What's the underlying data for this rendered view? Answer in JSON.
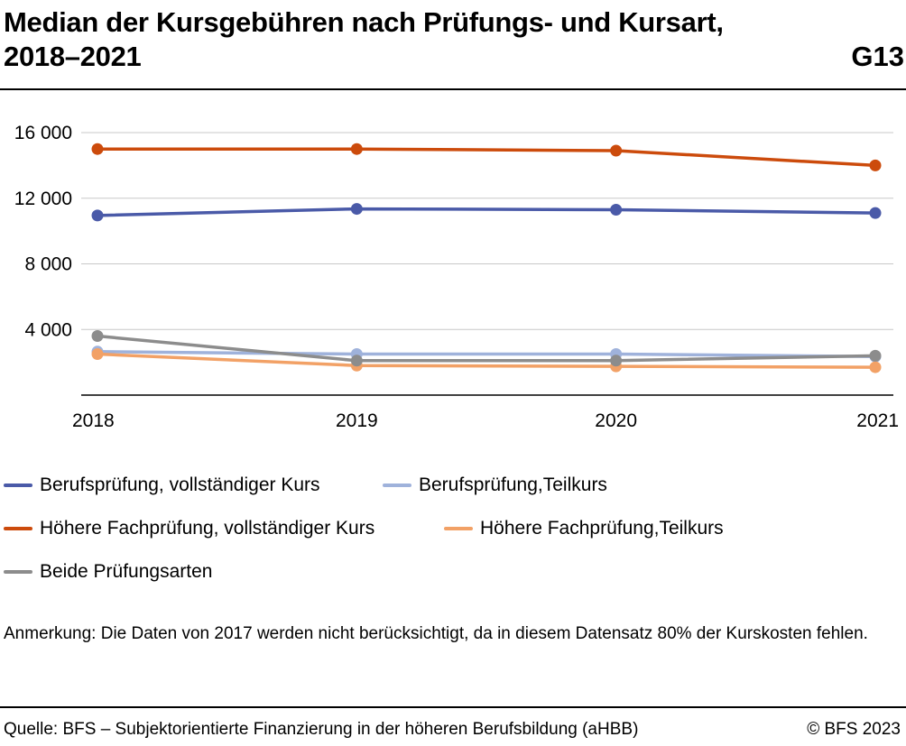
{
  "header": {
    "title": "Median der Kursgebühren nach Prüfungs- und Kursart, 2018–2021",
    "code": "G13"
  },
  "chart_data": {
    "type": "line",
    "title": "Median der Kursgebühren nach Prüfungs- und Kursart, 2018–2021",
    "xlabel": "",
    "ylabel": "",
    "x": [
      "2018",
      "2019",
      "2020",
      "2021"
    ],
    "ylim": [
      0,
      16000
    ],
    "yticks": [
      4000,
      8000,
      12000,
      16000
    ],
    "ytick_labels": [
      "4 000",
      "8 000",
      "12 000",
      "16 000"
    ],
    "grid": "horizontal",
    "legend_position": "bottom",
    "series": [
      {
        "name": "Berufsprüfung, vollständiger Kurs",
        "color": "#4a5aa8",
        "values": [
          10950,
          11350,
          11300,
          11100
        ]
      },
      {
        "name": "Berufsprüfung,Teilkurs",
        "color": "#9fb2db",
        "values": [
          2650,
          2500,
          2500,
          2350
        ]
      },
      {
        "name": "Höhere Fachprüfung, vollständiger Kurs",
        "color": "#cc4b0c",
        "values": [
          15000,
          15000,
          14900,
          14000
        ]
      },
      {
        "name": "Höhere Fachprüfung,Teilkurs",
        "color": "#f2a166",
        "values": [
          2500,
          1800,
          1750,
          1700
        ]
      },
      {
        "name": "Beide Prüfungsarten",
        "color": "#8c8c8c",
        "values": [
          3600,
          2100,
          2100,
          2400
        ]
      }
    ]
  },
  "note": "Anmerkung: Die Daten von 2017 werden nicht berücksichtigt, da in diesem Datensatz 80% der Kurskosten fehlen.",
  "footer": {
    "source": "Quelle: BFS – Subjektorientierte Finanzierung in der höheren Berufsbildung (aHBB)",
    "copyright": "© BFS 2023"
  }
}
